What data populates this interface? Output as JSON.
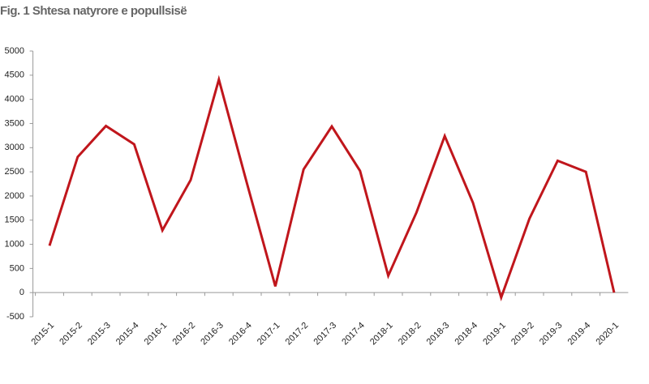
{
  "chart_data": {
    "type": "line",
    "title": "Fig. 1 Shtesa natyrore e popullsisë",
    "categories": [
      "2015-1",
      "2015-2",
      "2015-3",
      "2015-4",
      "2016-1",
      "2016-2",
      "2016-3",
      "2016-4",
      "2017-1",
      "2017-2",
      "2017-3",
      "2017-4",
      "2018-1",
      "2018-2",
      "2018-3",
      "2018-4",
      "2019-1",
      "2019-2",
      "2019-3",
      "2019-4",
      "2020-1"
    ],
    "values": [
      970,
      2810,
      3450,
      3070,
      1290,
      2330,
      4410,
      2250,
      130,
      2550,
      3440,
      2520,
      350,
      1660,
      3240,
      1860,
      -100,
      1530,
      2730,
      2500,
      0
    ],
    "color": "#c0161c",
    "ylim": [
      -500,
      5000
    ],
    "yticks": [
      -500,
      0,
      500,
      1000,
      1500,
      2000,
      2500,
      3000,
      3500,
      4000,
      4500,
      5000
    ]
  }
}
